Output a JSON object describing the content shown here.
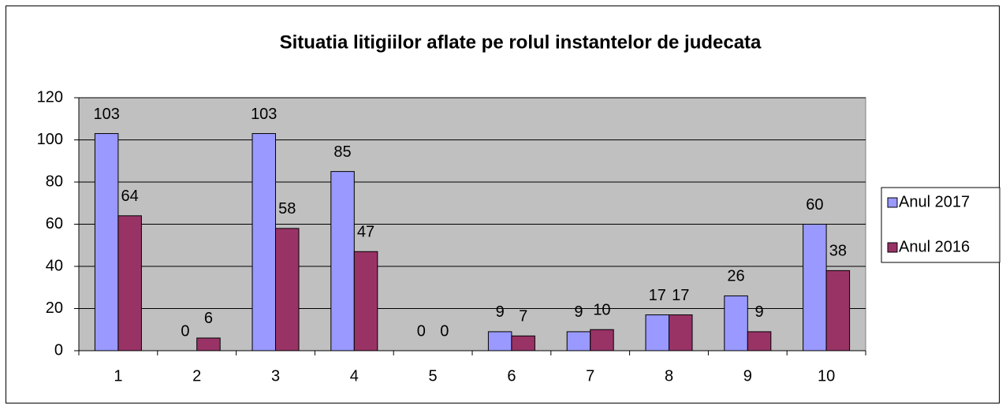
{
  "chart_data": {
    "type": "bar",
    "title": "Situatia litigiilor aflate pe rolul instantelor de judecata",
    "categories": [
      "1",
      "2",
      "3",
      "4",
      "5",
      "6",
      "7",
      "8",
      "9",
      "10"
    ],
    "series": [
      {
        "name": "Anul 2017",
        "color": "#9999ff",
        "values": [
          103,
          0,
          103,
          85,
          0,
          9,
          9,
          17,
          26,
          60
        ]
      },
      {
        "name": "Anul 2016",
        "color": "#993366",
        "values": [
          64,
          6,
          58,
          47,
          0,
          7,
          10,
          17,
          9,
          38
        ]
      }
    ],
    "ylim": [
      0,
      120
    ],
    "yticks": [
      0,
      20,
      40,
      60,
      80,
      100,
      120
    ],
    "grid": true,
    "plot_background": "#c0c0c0",
    "legend": "right"
  }
}
